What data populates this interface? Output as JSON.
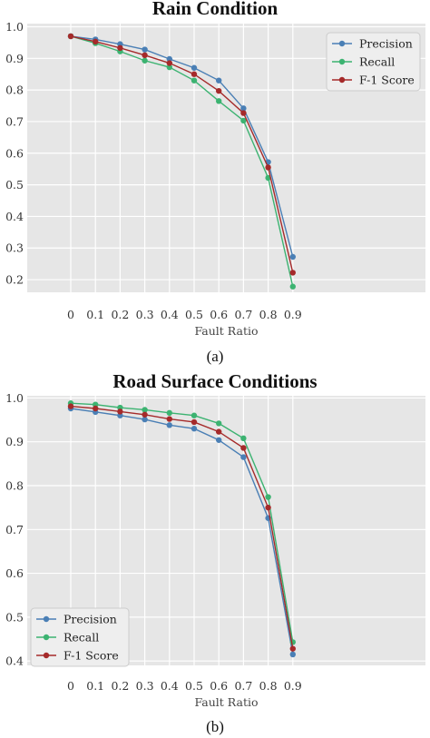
{
  "chart_data": [
    {
      "type": "line",
      "title": "Rain Condition",
      "xlabel": "Fault Ratio",
      "ylabel": "",
      "caption": "(a)",
      "categories": [
        "0",
        "0.1",
        "0.2",
        "0.3",
        "0.4",
        "0.5",
        "0.6",
        "0.7",
        "0.8",
        "0.9"
      ],
      "yticks": [
        "0.2",
        "0.3",
        "0.4",
        "0.5",
        "0.6",
        "0.7",
        "0.8",
        "0.9",
        "1.0"
      ],
      "ylim": [
        0.16,
        1.01
      ],
      "grid": true,
      "legend_position": "top-right",
      "series": [
        {
          "name": "Precision",
          "color": "#4a7fb5",
          "values": [
            0.97,
            0.96,
            0.945,
            0.928,
            0.898,
            0.87,
            0.83,
            0.742,
            0.572,
            0.272
          ]
        },
        {
          "name": "Recall",
          "color": "#3cb371",
          "values": [
            0.97,
            0.948,
            0.922,
            0.893,
            0.872,
            0.83,
            0.765,
            0.703,
            0.522,
            0.178
          ]
        },
        {
          "name": "F-1 Score",
          "color": "#a52a2a",
          "values": [
            0.97,
            0.953,
            0.933,
            0.91,
            0.885,
            0.85,
            0.797,
            0.727,
            0.555,
            0.222
          ]
        }
      ]
    },
    {
      "type": "line",
      "title": "Road Surface Conditions",
      "xlabel": "Fault Ratio",
      "ylabel": "",
      "caption": "(b)",
      "categories": [
        "0",
        "0.1",
        "0.2",
        "0.3",
        "0.4",
        "0.5",
        "0.6",
        "0.7",
        "0.8",
        "0.9"
      ],
      "yticks": [
        "0.4",
        "0.5",
        "0.6",
        "0.7",
        "0.8",
        "0.9",
        "1.0"
      ],
      "ylim": [
        0.39,
        1.005
      ],
      "grid": true,
      "legend_position": "bottom-left",
      "series": [
        {
          "name": "Precision",
          "color": "#4a7fb5",
          "values": [
            0.976,
            0.968,
            0.96,
            0.951,
            0.938,
            0.93,
            0.904,
            0.865,
            0.726,
            0.415
          ]
        },
        {
          "name": "Recall",
          "color": "#3cb371",
          "values": [
            0.988,
            0.985,
            0.978,
            0.973,
            0.966,
            0.96,
            0.942,
            0.908,
            0.774,
            0.443
          ]
        },
        {
          "name": "F-1 Score",
          "color": "#a52a2a",
          "values": [
            0.981,
            0.976,
            0.969,
            0.962,
            0.952,
            0.945,
            0.923,
            0.886,
            0.75,
            0.428
          ]
        }
      ]
    }
  ]
}
